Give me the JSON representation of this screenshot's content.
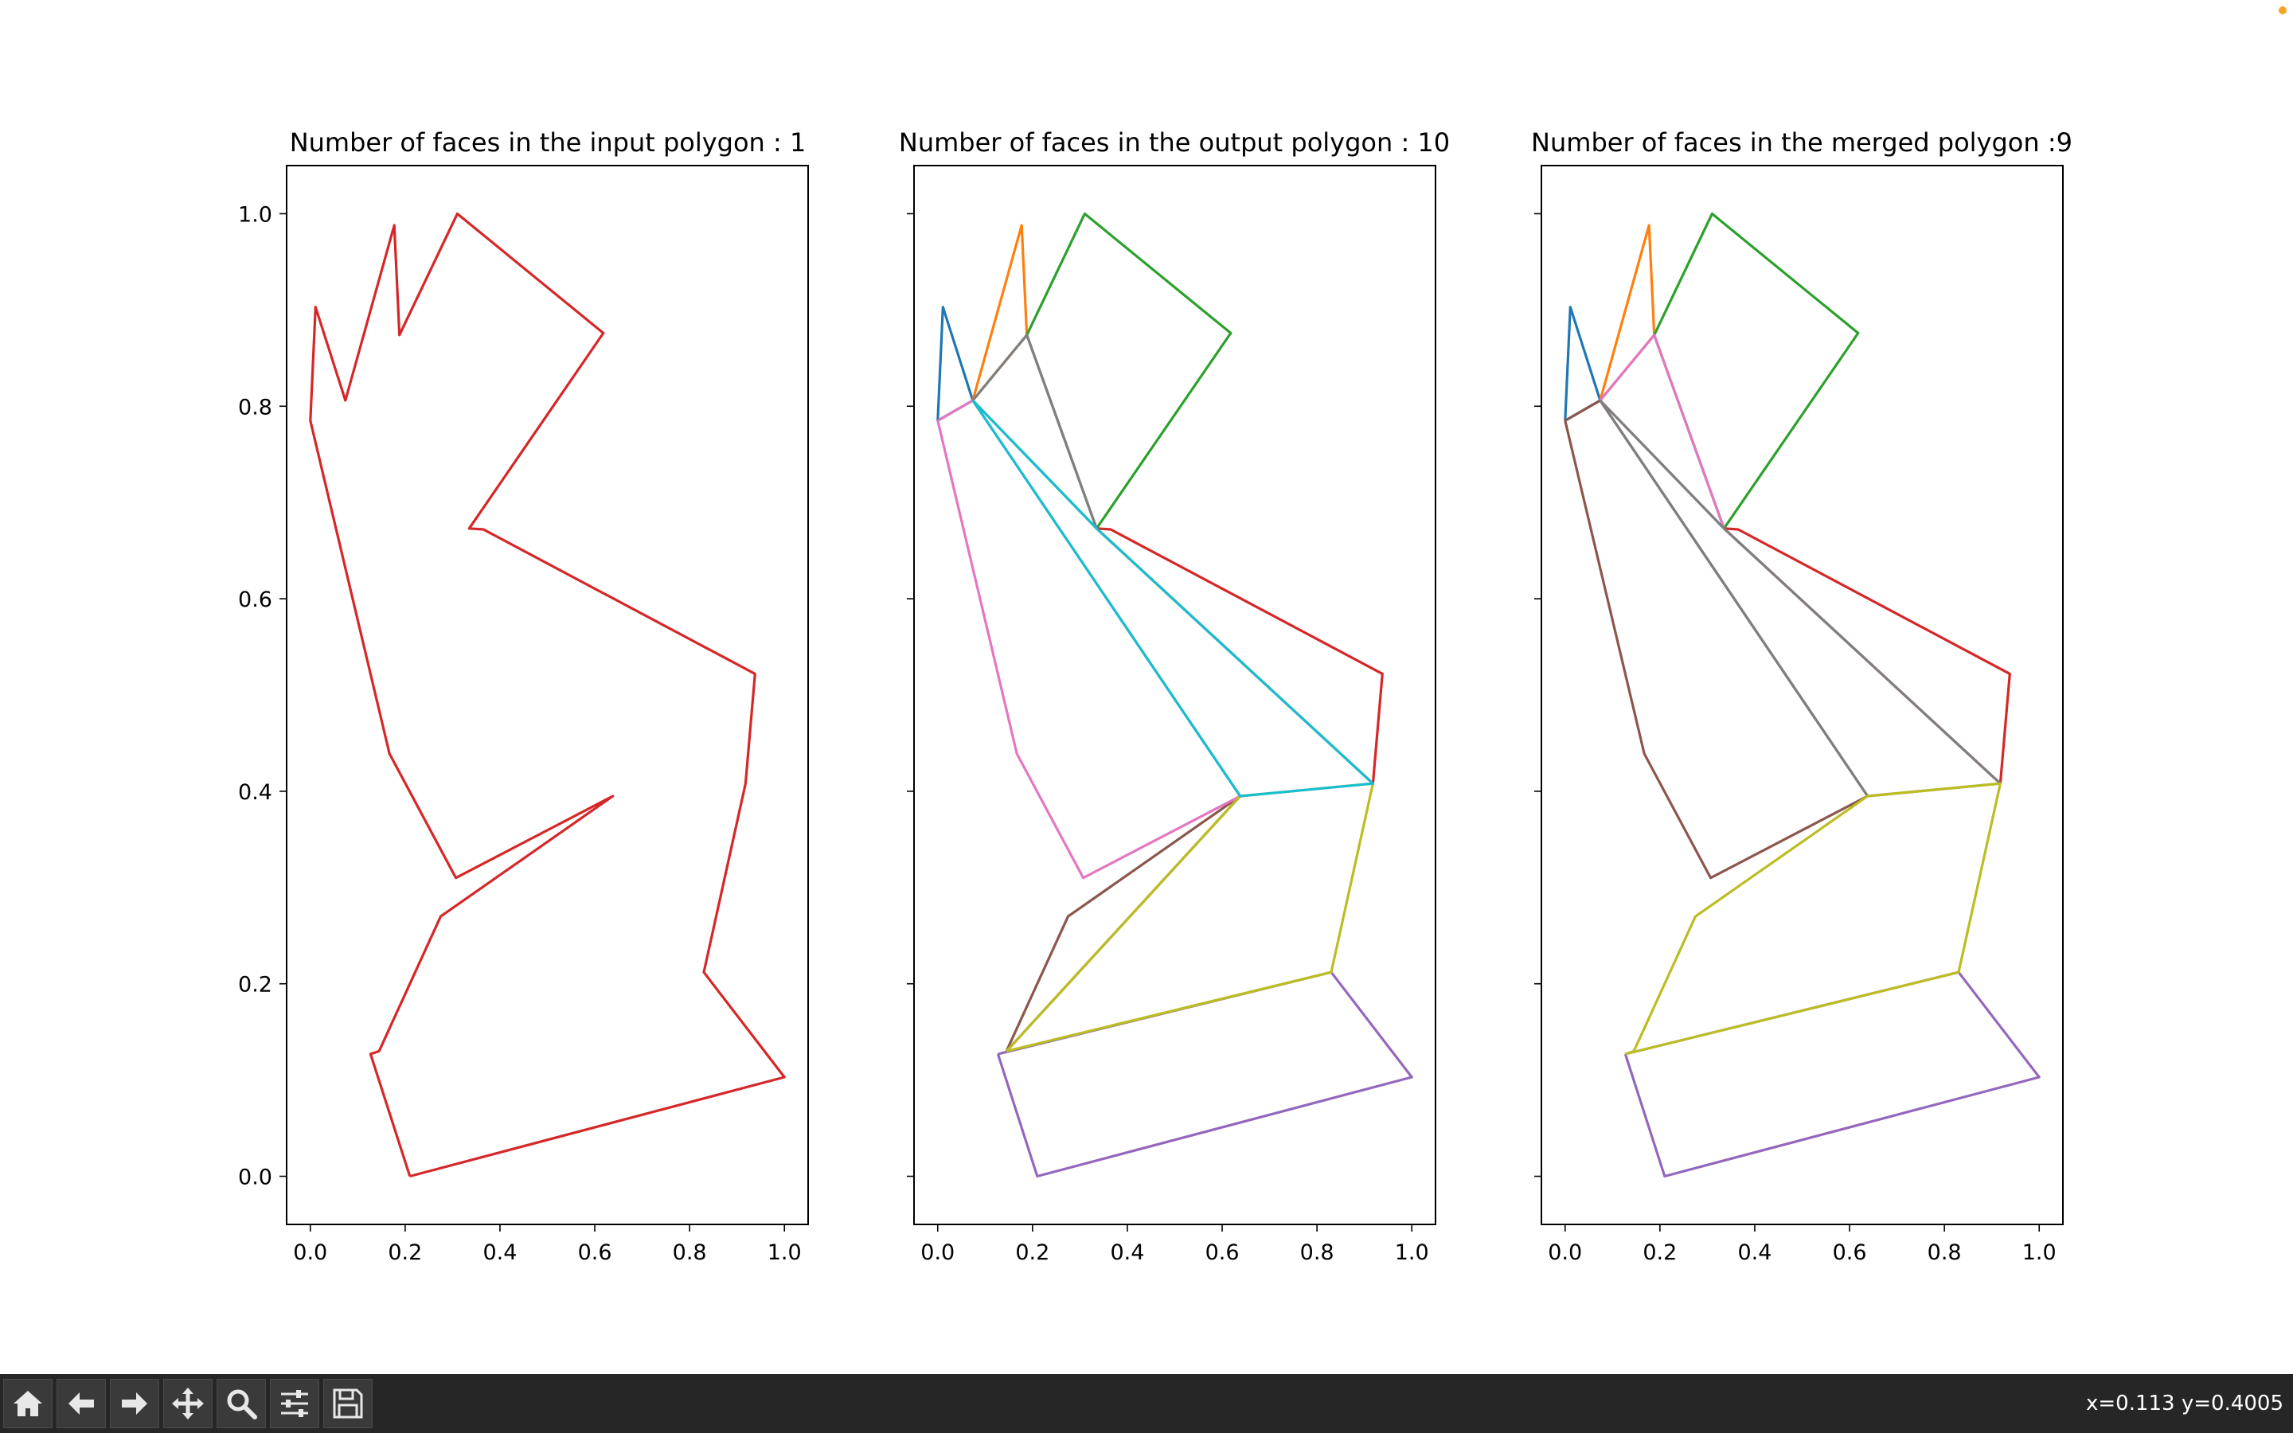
{
  "toolbar": {
    "buttons": [
      {
        "name": "home-icon"
      },
      {
        "name": "back-arrow-icon"
      },
      {
        "name": "forward-arrow-icon"
      },
      {
        "name": "pan-move-icon"
      },
      {
        "name": "zoom-magnifier-icon"
      },
      {
        "name": "configure-subplots-icon"
      },
      {
        "name": "save-floppy-icon"
      }
    ],
    "coords": "x=0.113 y=0.4005"
  },
  "colors": {
    "C0": "#1f77b4",
    "C1": "#ff7f0e",
    "C2": "#2ca02c",
    "C3": "#d62728",
    "C4": "#9467bd",
    "C5": "#8c564b",
    "C6": "#e377c2",
    "C7": "#7f7f7f",
    "C8": "#bcbd22",
    "C9": "#17becf",
    "toolbar_bg": "#262626"
  },
  "chart_data": [
    {
      "type": "line",
      "title": "Number of faces in the input polygon :  1",
      "xlim": [
        -0.05,
        1.05
      ],
      "ylim": [
        -0.05,
        1.05
      ],
      "xticks": [
        "0.0",
        "0.2",
        "0.4",
        "0.6",
        "0.8",
        "1.0"
      ],
      "yticks": [
        "0.0",
        "0.2",
        "0.4",
        "0.6",
        "0.8",
        "1.0"
      ],
      "series": [
        {
          "color": "#d62728",
          "points": [
            [
              0.21,
              0.0
            ],
            [
              1.0,
              0.103
            ],
            [
              0.83,
              0.212
            ],
            [
              0.918,
              0.408
            ],
            [
              0.938,
              0.522
            ],
            [
              0.365,
              0.672
            ],
            [
              0.335,
              0.673
            ],
            [
              0.618,
              0.876
            ],
            [
              0.31,
              1.0
            ],
            [
              0.188,
              0.874
            ],
            [
              0.177,
              0.988
            ],
            [
              0.074,
              0.806
            ],
            [
              0.011,
              0.903
            ],
            [
              0.0,
              0.785
            ],
            [
              0.167,
              0.439
            ],
            [
              0.307,
              0.31
            ],
            [
              0.638,
              0.395
            ],
            [
              0.275,
              0.27
            ],
            [
              0.145,
              0.13
            ],
            [
              0.127,
              0.127
            ],
            [
              0.21,
              0.0
            ]
          ]
        }
      ]
    },
    {
      "type": "line",
      "title": "Number of faces in the output polygon : 10",
      "xlim": [
        -0.05,
        1.05
      ],
      "ylim": [
        -0.05,
        1.05
      ],
      "xticks": [
        "0.0",
        "0.2",
        "0.4",
        "0.6",
        "0.8",
        "1.0"
      ],
      "yticks": [
        "",
        "",
        "",
        "",
        "",
        ""
      ],
      "series": [
        {
          "color": "#1f77b4",
          "points": [
            [
              0.0,
              0.785
            ],
            [
              0.011,
              0.903
            ],
            [
              0.074,
              0.806
            ],
            [
              0.0,
              0.785
            ]
          ]
        },
        {
          "color": "#ff7f0e",
          "points": [
            [
              0.074,
              0.806
            ],
            [
              0.177,
              0.988
            ],
            [
              0.188,
              0.874
            ],
            [
              0.074,
              0.806
            ]
          ]
        },
        {
          "color": "#2ca02c",
          "points": [
            [
              0.188,
              0.874
            ],
            [
              0.31,
              1.0
            ],
            [
              0.618,
              0.876
            ],
            [
              0.335,
              0.673
            ],
            [
              0.188,
              0.874
            ]
          ]
        },
        {
          "color": "#d62728",
          "points": [
            [
              0.335,
              0.673
            ],
            [
              0.365,
              0.672
            ],
            [
              0.938,
              0.522
            ],
            [
              0.918,
              0.408
            ],
            [
              0.335,
              0.673
            ]
          ]
        },
        {
          "color": "#9467bd",
          "points": [
            [
              0.127,
              0.127
            ],
            [
              0.83,
              0.212
            ],
            [
              1.0,
              0.103
            ],
            [
              0.21,
              0.0
            ],
            [
              0.127,
              0.127
            ]
          ]
        },
        {
          "color": "#8c564b",
          "points": [
            [
              0.145,
              0.13
            ],
            [
              0.275,
              0.27
            ],
            [
              0.638,
              0.395
            ],
            [
              0.145,
              0.13
            ]
          ]
        },
        {
          "color": "#e377c2",
          "points": [
            [
              0.0,
              0.785
            ],
            [
              0.074,
              0.806
            ],
            [
              0.638,
              0.395
            ],
            [
              0.307,
              0.31
            ],
            [
              0.167,
              0.439
            ],
            [
              0.0,
              0.785
            ]
          ]
        },
        {
          "color": "#7f7f7f",
          "points": [
            [
              0.074,
              0.806
            ],
            [
              0.188,
              0.874
            ],
            [
              0.335,
              0.673
            ],
            [
              0.074,
              0.806
            ]
          ]
        },
        {
          "color": "#bcbd22",
          "points": [
            [
              0.145,
              0.13
            ],
            [
              0.638,
              0.395
            ],
            [
              0.918,
              0.408
            ],
            [
              0.83,
              0.212
            ],
            [
              0.145,
              0.13
            ]
          ]
        },
        {
          "color": "#17becf",
          "points": [
            [
              0.074,
              0.806
            ],
            [
              0.335,
              0.673
            ],
            [
              0.918,
              0.408
            ],
            [
              0.638,
              0.395
            ],
            [
              0.074,
              0.806
            ]
          ]
        }
      ]
    },
    {
      "type": "line",
      "title": "Number of faces in the merged polygon :9",
      "xlim": [
        -0.05,
        1.05
      ],
      "ylim": [
        -0.05,
        1.05
      ],
      "xticks": [
        "0.0",
        "0.2",
        "0.4",
        "0.6",
        "0.8",
        "1.0"
      ],
      "yticks": [
        "",
        "",
        "",
        "",
        "",
        ""
      ],
      "series": [
        {
          "color": "#1f77b4",
          "points": [
            [
              0.0,
              0.785
            ],
            [
              0.011,
              0.903
            ],
            [
              0.074,
              0.806
            ],
            [
              0.0,
              0.785
            ]
          ]
        },
        {
          "color": "#ff7f0e",
          "points": [
            [
              0.074,
              0.806
            ],
            [
              0.177,
              0.988
            ],
            [
              0.188,
              0.874
            ],
            [
              0.074,
              0.806
            ]
          ]
        },
        {
          "color": "#2ca02c",
          "points": [
            [
              0.188,
              0.874
            ],
            [
              0.31,
              1.0
            ],
            [
              0.618,
              0.876
            ],
            [
              0.335,
              0.673
            ],
            [
              0.188,
              0.874
            ]
          ]
        },
        {
          "color": "#d62728",
          "points": [
            [
              0.335,
              0.673
            ],
            [
              0.365,
              0.672
            ],
            [
              0.938,
              0.522
            ],
            [
              0.918,
              0.408
            ],
            [
              0.335,
              0.673
            ]
          ]
        },
        {
          "color": "#9467bd",
          "points": [
            [
              0.127,
              0.127
            ],
            [
              0.83,
              0.212
            ],
            [
              1.0,
              0.103
            ],
            [
              0.21,
              0.0
            ],
            [
              0.127,
              0.127
            ]
          ]
        },
        {
          "color": "#8c564b",
          "points": [
            [
              0.0,
              0.785
            ],
            [
              0.074,
              0.806
            ],
            [
              0.638,
              0.395
            ],
            [
              0.307,
              0.31
            ],
            [
              0.167,
              0.439
            ],
            [
              0.0,
              0.785
            ]
          ]
        },
        {
          "color": "#e377c2",
          "points": [
            [
              0.074,
              0.806
            ],
            [
              0.188,
              0.874
            ],
            [
              0.335,
              0.673
            ],
            [
              0.074,
              0.806
            ]
          ]
        },
        {
          "color": "#7f7f7f",
          "points": [
            [
              0.074,
              0.806
            ],
            [
              0.335,
              0.673
            ],
            [
              0.918,
              0.408
            ],
            [
              0.638,
              0.395
            ],
            [
              0.074,
              0.806
            ]
          ]
        },
        {
          "color": "#bcbd22",
          "points": [
            [
              0.127,
              0.127
            ],
            [
              0.145,
              0.13
            ],
            [
              0.275,
              0.27
            ],
            [
              0.638,
              0.395
            ],
            [
              0.918,
              0.408
            ],
            [
              0.83,
              0.212
            ],
            [
              0.127,
              0.127
            ]
          ]
        }
      ]
    }
  ]
}
